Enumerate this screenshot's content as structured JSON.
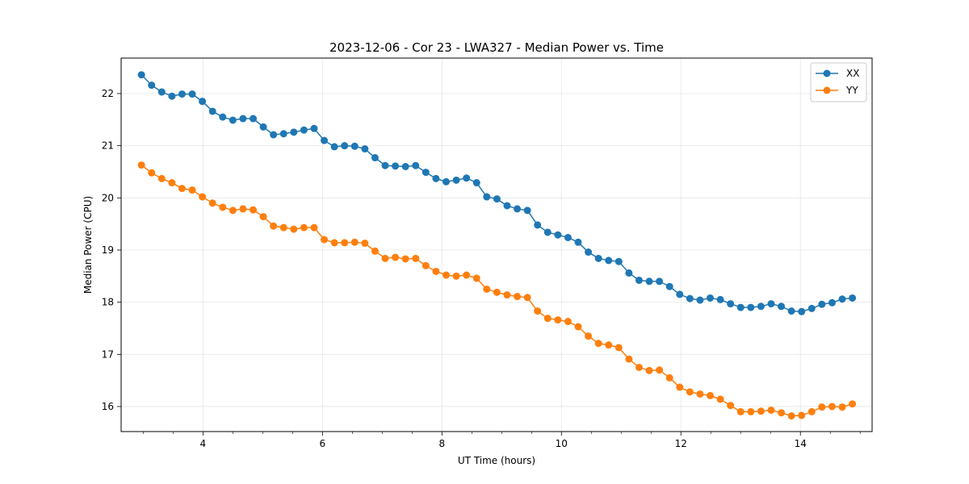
{
  "chart_data": {
    "type": "line",
    "title": "2023-12-06 - Cor 23 - LWA327 - Median Power vs. Time",
    "xlabel": "UT Time (hours)",
    "ylabel": "Median Power (CPU)",
    "xlim": [
      2.63,
      15.2
    ],
    "ylim": [
      15.52,
      22.68
    ],
    "xticks": [
      4,
      6,
      8,
      10,
      12,
      14
    ],
    "yticks": [
      16,
      17,
      18,
      19,
      20,
      21,
      22
    ],
    "grid": true,
    "legend_position": "top-right",
    "x": [
      2.97,
      3.14,
      3.31,
      3.48,
      3.65,
      3.82,
      3.99,
      4.16,
      4.33,
      4.5,
      4.67,
      4.84,
      5.01,
      5.18,
      5.35,
      5.52,
      5.69,
      5.86,
      6.03,
      6.2,
      6.37,
      6.54,
      6.71,
      6.88,
      7.05,
      7.22,
      7.39,
      7.56,
      7.73,
      7.9,
      8.07,
      8.24,
      8.41,
      8.58,
      8.75,
      8.92,
      9.09,
      9.26,
      9.43,
      9.6,
      9.77,
      9.94,
      10.11,
      10.28,
      10.45,
      10.62,
      10.79,
      10.96,
      11.13,
      11.3,
      11.47,
      11.64,
      11.81,
      11.98,
      12.15,
      12.32,
      12.49,
      12.66,
      12.83,
      13.0,
      13.17,
      13.34,
      13.51,
      13.68,
      13.85,
      14.02,
      14.19,
      14.36,
      14.53,
      14.7,
      14.87
    ],
    "series": [
      {
        "name": "XX",
        "color": "#1f77b4",
        "values": [
          22.36,
          22.16,
          22.03,
          21.95,
          21.99,
          21.99,
          21.85,
          21.66,
          21.55,
          21.49,
          21.52,
          21.52,
          21.36,
          21.21,
          21.23,
          21.26,
          21.3,
          21.33,
          21.1,
          20.98,
          21.0,
          20.99,
          20.94,
          20.77,
          20.62,
          20.61,
          20.6,
          20.62,
          20.49,
          20.37,
          20.31,
          20.34,
          20.38,
          20.29,
          20.02,
          19.98,
          19.85,
          19.79,
          19.76,
          19.48,
          19.34,
          19.29,
          19.24,
          19.15,
          18.96,
          18.84,
          18.8,
          18.78,
          18.56,
          18.42,
          18.4,
          18.4,
          18.3,
          18.15,
          18.07,
          18.04,
          18.08,
          18.05,
          17.97,
          17.9,
          17.9,
          17.92,
          17.97,
          17.92,
          17.83,
          17.82,
          17.88,
          17.96,
          17.99,
          18.06,
          18.08
        ],
        "values_tail_note": ""
      },
      {
        "name": "YY",
        "color": "#ff7f0e",
        "values": [
          20.63,
          20.48,
          20.37,
          20.29,
          20.18,
          20.15,
          20.02,
          19.9,
          19.82,
          19.76,
          19.79,
          19.77,
          19.64,
          19.46,
          19.43,
          19.4,
          19.43,
          19.43,
          19.2,
          19.14,
          19.14,
          19.15,
          19.13,
          18.98,
          18.84,
          18.86,
          18.83,
          18.84,
          18.7,
          18.59,
          18.52,
          18.5,
          18.52,
          18.46,
          18.25,
          18.19,
          18.14,
          18.11,
          18.09,
          17.83,
          17.69,
          17.66,
          17.63,
          17.53,
          17.35,
          17.21,
          17.18,
          17.13,
          16.91,
          16.75,
          16.69,
          16.7,
          16.55,
          16.37,
          16.28,
          16.24,
          16.21,
          16.14,
          16.02,
          15.9,
          15.9,
          15.91,
          15.93,
          15.88,
          15.82,
          15.83,
          15.9,
          15.99,
          16.0,
          15.99,
          16.05
        ]
      }
    ]
  }
}
